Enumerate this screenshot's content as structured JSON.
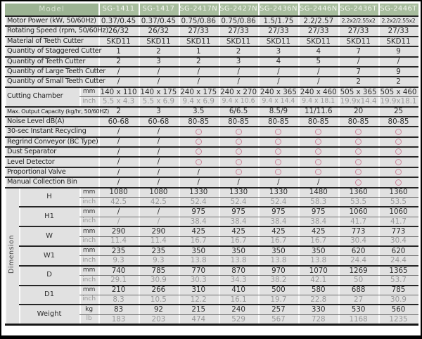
{
  "colors": {
    "header_green": "#a8bd9e",
    "model_cell_green": "#9cb393",
    "cell_bg": "#e1e1e1",
    "dark_text": "#2d2d2d",
    "gray_text": "#979797",
    "circle_color": "#c9849a"
  },
  "table": {
    "header": {
      "model_label": "Model",
      "models": [
        "SG-1411",
        "SG-1417",
        "SG-2417N",
        "SG-2427N",
        "SG-2436N",
        "SG-2446N",
        "SG-2436T",
        "SG-2446T"
      ]
    },
    "sections": [
      {
        "type": "rows",
        "rows": [
          {
            "label": "Motor Power (kW, 50/60Hz)",
            "values": [
              "0.37/0.45",
              "0.37/0.45",
              "0.75/0.86",
              "0.75/0.86",
              "1.5/1.75",
              "2.2/2.57",
              "2.2x2/2.55x2",
              "2.2x2/2.55x2"
            ]
          },
          {
            "label": "Rotating Speed (rpm, 50/60Hz)",
            "values": [
              "26/32",
              "26/32",
              "27/33",
              "27/33",
              "27/33",
              "27/33",
              "27/33",
              "27/33"
            ]
          },
          {
            "label": "Material of Teeth Cutter",
            "values": [
              "SKD11",
              "SKD11",
              "SKD11",
              "SKD11",
              "SKD11",
              "SKD11",
              "SKD11",
              "SKD11"
            ]
          },
          {
            "label": "Quantity of Staggered Cutter",
            "values": [
              "1",
              "2",
              "1",
              "2",
              "3",
              "4",
              "7",
              "9"
            ]
          },
          {
            "label": "Quantity of Teeth Cutter",
            "values": [
              "2",
              "3",
              "2",
              "3",
              "4",
              "5",
              "/",
              "/"
            ]
          },
          {
            "label": "Quantity of Large Teeth Cutter",
            "values": [
              "/",
              "/",
              "/",
              "/",
              "/",
              "/",
              "7",
              "9"
            ]
          },
          {
            "label": "Quantity of Small Teeth Cutter",
            "values": [
              "/",
              "/",
              "/",
              "/",
              "/",
              "/",
              "2",
              "2"
            ]
          }
        ]
      },
      {
        "type": "unit_group",
        "label": "Cutting Chamber",
        "units": [
          "mm",
          "inch"
        ],
        "rows": [
          [
            "140 x 110",
            "140 x 175",
            "240 x 175",
            "240 x 270",
            "240 x 365",
            "240 x 460",
            "505 x 365",
            "505 x 460"
          ],
          [
            "5.5 x 4.3",
            "5.5 x 6.9",
            "9.4 x 6.9",
            "9.4 x 10.6",
            "9.4 x 14.4",
            "9.4 x 18.1",
            "19.9x14.4",
            "19.9x18.1"
          ]
        ]
      },
      {
        "type": "rows",
        "rows": [
          {
            "label": "Max. Output Capacity (kg/hr, 50/60HZ)",
            "condensed": true,
            "values": [
              "2",
              "3",
              "3.5",
              "6/6.5",
              "8.5/9",
              "11/11.6",
              "20",
              "25"
            ]
          },
          {
            "label": "Noise Level dB(A)",
            "values": [
              "60-68",
              "60-68",
              "80-85",
              "80-85",
              "80-85",
              "80-85",
              "80-85",
              "80-85"
            ]
          },
          {
            "label": "30-sec Instant Recycling",
            "values": [
              "/",
              "/",
              "circle",
              "circle",
              "circle",
              "circle",
              "circle",
              "circle"
            ]
          },
          {
            "label": "Regrind Conveyor (BC Type)",
            "values": [
              "/",
              "/",
              "circle",
              "circle",
              "circle",
              "circle",
              "circle",
              "circle"
            ]
          },
          {
            "label": "Dust Separator",
            "values": [
              "/",
              "/",
              "circle",
              "circle",
              "circle",
              "circle",
              "circle",
              "circle"
            ]
          },
          {
            "label": "Level Detector",
            "values": [
              "/",
              "/",
              "circle",
              "circle",
              "circle",
              "circle",
              "circle",
              "circle"
            ]
          },
          {
            "label": "Proportional Valve",
            "values": [
              "/",
              "/",
              "/",
              "circle",
              "circle",
              "circle",
              "circle",
              "circle"
            ]
          },
          {
            "label": "Manual Collection Bin",
            "values": [
              "/",
              "/",
              "/",
              "/",
              "/",
              "/",
              "circle",
              "circle"
            ]
          }
        ]
      },
      {
        "type": "dimension",
        "label": "Dimension",
        "groups": [
          {
            "name": "H",
            "units": [
              "mm",
              "inch"
            ],
            "rows": [
              [
                "1080",
                "1080",
                "1330",
                "1330",
                "1330",
                "1480",
                "1360",
                "1360"
              ],
              [
                "42.5",
                "42.5",
                "52.4",
                "52.4",
                "52.4",
                "58.3",
                "53.5",
                "53.5"
              ]
            ]
          },
          {
            "name": "H1",
            "units": [
              "mm",
              "inch"
            ],
            "rows": [
              [
                "/",
                "/",
                "975",
                "975",
                "975",
                "975",
                "1060",
                "1060"
              ],
              [
                "/",
                "/",
                "38.4",
                "38.4",
                "38.4",
                "38.4",
                "41.7",
                "41.7"
              ]
            ]
          },
          {
            "name": "W",
            "units": [
              "mm",
              "inch"
            ],
            "rows": [
              [
                "290",
                "290",
                "425",
                "425",
                "425",
                "425",
                "773",
                "773"
              ],
              [
                "11.4",
                "11.4",
                "16.7",
                "16.7",
                "16.7",
                "16.7",
                "30.4",
                "30.4"
              ]
            ]
          },
          {
            "name": "W1",
            "units": [
              "mm",
              "inch"
            ],
            "rows": [
              [
                "235",
                "235",
                "350",
                "350",
                "350",
                "350",
                "620",
                "620"
              ],
              [
                "9.3",
                "9.3",
                "13.8",
                "13.8",
                "13.8",
                "13.8",
                "24.4",
                "24.4"
              ]
            ]
          },
          {
            "name": "D",
            "units": [
              "mm",
              "inch"
            ],
            "rows": [
              [
                "740",
                "785",
                "770",
                "870",
                "970",
                "1070",
                "1269",
                "1365"
              ],
              [
                "29.1",
                "30.9",
                "30.3",
                "34.3",
                "38.2",
                "42.1",
                "50",
                "53.7"
              ]
            ]
          },
          {
            "name": "D1",
            "units": [
              "mm",
              "inch"
            ],
            "rows": [
              [
                "210",
                "266",
                "310",
                "410",
                "500",
                "580",
                "688",
                "785"
              ],
              [
                "8.3",
                "10.5",
                "12.2",
                "16.1",
                "19.7",
                "22.8",
                "27",
                "30.9"
              ]
            ]
          },
          {
            "name": "Weight",
            "units": [
              "kg",
              "lb"
            ],
            "rows": [
              [
                "83",
                "92",
                "215",
                "240",
                "257",
                "330",
                "530",
                "560"
              ],
              [
                "183",
                "203",
                "474",
                "529",
                "567",
                "728",
                "1168",
                "1235"
              ]
            ]
          }
        ]
      }
    ]
  }
}
